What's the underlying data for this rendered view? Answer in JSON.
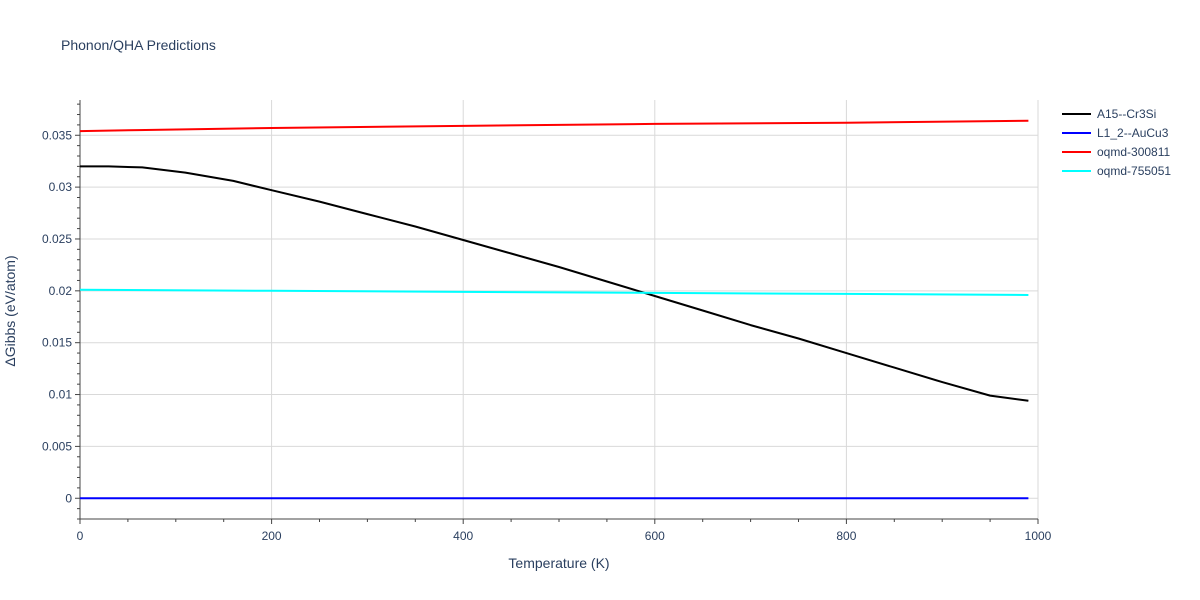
{
  "chart_data": {
    "type": "line",
    "title": "Phonon/QHA Predictions",
    "xlabel": "Temperature (K)",
    "ylabel": "ΔGibbs (eV/atom)",
    "xlim": [
      0,
      1000
    ],
    "ylim": [
      -0.002,
      0.0384
    ],
    "xticks": [
      0,
      200,
      400,
      600,
      800,
      1000
    ],
    "xtick_labels": [
      "0",
      "200",
      "400",
      "600",
      "800",
      "1000"
    ],
    "yticks": [
      0,
      0.005,
      0.01,
      0.015,
      0.02,
      0.025,
      0.03,
      0.035
    ],
    "ytick_labels": [
      "0",
      "0.005",
      "0.01",
      "0.015",
      "0.02",
      "0.025",
      "0.03",
      "0.035"
    ],
    "grid": true,
    "legend_position": "top-right",
    "series": [
      {
        "name": "A15--Cr3Si",
        "color": "#000000",
        "x": [
          0,
          30,
          65,
          110,
          160,
          200,
          250,
          300,
          350,
          400,
          450,
          500,
          550,
          600,
          650,
          700,
          750,
          800,
          850,
          900,
          950,
          990
        ],
        "y": [
          0.032,
          0.032,
          0.0319,
          0.0314,
          0.0306,
          0.0297,
          0.0286,
          0.0274,
          0.0262,
          0.0249,
          0.0236,
          0.0223,
          0.0209,
          0.0195,
          0.0181,
          0.0167,
          0.0154,
          0.014,
          0.0126,
          0.0112,
          0.0099,
          0.0094
        ]
      },
      {
        "name": "L1_2--AuCu3",
        "color": "#0000ff",
        "x": [
          0,
          990
        ],
        "y": [
          0.0,
          0.0
        ]
      },
      {
        "name": "oqmd-300811",
        "color": "#ff0000",
        "x": [
          0,
          60,
          200,
          400,
          600,
          800,
          990
        ],
        "y": [
          0.0354,
          0.0355,
          0.0357,
          0.0359,
          0.0361,
          0.0362,
          0.0364
        ]
      },
      {
        "name": "oqmd-755051",
        "color": "#00ffff",
        "x": [
          0,
          200,
          400,
          600,
          800,
          990
        ],
        "y": [
          0.0201,
          0.02,
          0.0199,
          0.0198,
          0.0197,
          0.0196
        ]
      }
    ]
  }
}
